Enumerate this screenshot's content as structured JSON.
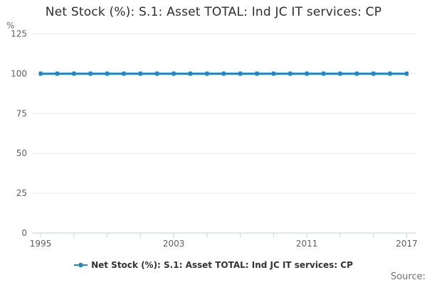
{
  "title": "Net Stock (%): S.1: Asset TOTAL: Ind JC IT services: CP",
  "y_axis_unit": "%",
  "legend": {
    "label": "Net Stock (%): S.1: Asset TOTAL: Ind JC IT services: CP"
  },
  "source_label": "Source:",
  "colors": {
    "line": "#1d87c9",
    "marker": "#1d87c9",
    "grid": "#e6e6e6",
    "axis": "#c9d2dd",
    "tick_label": "#5f5f5f",
    "title_text": "#2d2d2d",
    "legend_text": "#333333",
    "source_text": "#707070"
  },
  "chart_data": {
    "type": "line",
    "title": "Net Stock (%): S.1: Asset TOTAL: Ind JC IT services: CP",
    "xlabel": "",
    "ylabel": "%",
    "ylim": [
      0,
      125
    ],
    "yticks": [
      0,
      25,
      50,
      75,
      100,
      125
    ],
    "xticks_labeled": [
      1995,
      2003,
      2011,
      2017
    ],
    "xtick_minor_step_years": 2,
    "grid": true,
    "legend_position": "bottom",
    "x": [
      1995,
      1996,
      1997,
      1998,
      1999,
      2000,
      2001,
      2002,
      2003,
      2004,
      2005,
      2006,
      2007,
      2008,
      2009,
      2010,
      2011,
      2012,
      2013,
      2014,
      2015,
      2016,
      2017
    ],
    "series": [
      {
        "name": "Net Stock (%): S.1: Asset TOTAL: Ind JC IT services: CP",
        "values": [
          100,
          100,
          100,
          100,
          100,
          100,
          100,
          100,
          100,
          100,
          100,
          100,
          100,
          100,
          100,
          100,
          100,
          100,
          100,
          100,
          100,
          100,
          100
        ]
      }
    ]
  }
}
